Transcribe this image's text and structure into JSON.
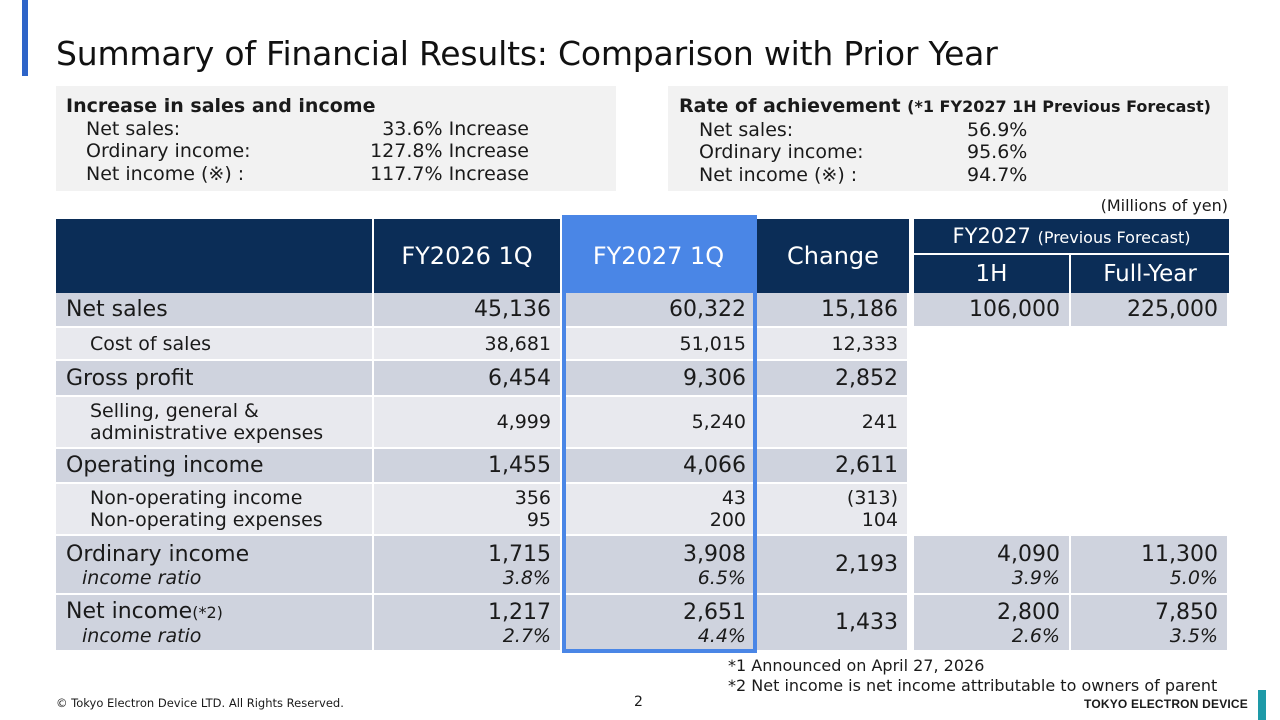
{
  "title": "Summary of Financial Results: Comparison with Prior Year",
  "increase_box": {
    "heading": "Increase in sales and income",
    "rows": [
      {
        "label": "Net sales:",
        "value": "33.6% Increase"
      },
      {
        "label": "Ordinary income:",
        "value": "127.8% Increase"
      },
      {
        "label": "Net income (※) :",
        "value": "117.7% Increase"
      }
    ]
  },
  "achievement_box": {
    "heading": "Rate of achievement",
    "heading_note": "(*1 FY2027 1H Previous Forecast)",
    "rows": [
      {
        "label": "Net sales:",
        "value": "56.9%"
      },
      {
        "label": "Ordinary income:",
        "value": "95.6%"
      },
      {
        "label": "Net income (※) :",
        "value": "94.7%"
      }
    ]
  },
  "unit": "(Millions of yen)",
  "table": {
    "headers": {
      "fy2026": "FY2026 1Q",
      "fy2027": "FY2027 1Q",
      "change": "Change",
      "forecast": "FY2027",
      "forecast_note": "(Previous Forecast)",
      "h1": "1H",
      "full_year": "Full-Year"
    },
    "net_sales": {
      "label": "Net sales",
      "fy2026": "45,136",
      "fy2027": "60,322",
      "change": "15,186",
      "h1": "106,000",
      "full_year": "225,000"
    },
    "cost_of_sales": {
      "label": "Cost of sales",
      "fy2026": "38,681",
      "fy2027": "51,015",
      "change": "12,333"
    },
    "gross_profit": {
      "label": "Gross profit",
      "fy2026": "6,454",
      "fy2027": "9,306",
      "change": "2,852"
    },
    "sga": {
      "label_1": "Selling, general &",
      "label_2": "administrative expenses",
      "fy2026": "4,999",
      "fy2027": "5,240",
      "change": "241"
    },
    "operating_income": {
      "label": "Operating income",
      "fy2026": "1,455",
      "fy2027": "4,066",
      "change": "2,611"
    },
    "non_operating": {
      "label_income": "Non-operating income",
      "label_expenses": "Non-operating expenses",
      "fy2026_income": "356",
      "fy2026_expenses": "95",
      "fy2027_income": "43",
      "fy2027_expenses": "200",
      "change_income": "(313)",
      "change_expenses": "104"
    },
    "ordinary_income": {
      "label": "Ordinary income",
      "ratio_label": "income ratio",
      "fy2026": "1,715",
      "fy2026_ratio": "3.8%",
      "fy2027": "3,908",
      "fy2027_ratio": "6.5%",
      "change": "2,193",
      "h1": "4,090",
      "h1_ratio": "3.9%",
      "full_year": "11,300",
      "full_year_ratio": "5.0%"
    },
    "net_income": {
      "label": "Net income",
      "label_note": "(*2)",
      "ratio_label": "income ratio",
      "fy2026": "1,217",
      "fy2026_ratio": "2.7%",
      "fy2027": "2,651",
      "fy2027_ratio": "4.4%",
      "change": "1,433",
      "h1": "2,800",
      "h1_ratio": "2.6%",
      "full_year": "7,850",
      "full_year_ratio": "3.5%"
    }
  },
  "notes": [
    "*1 Announced on April 27, 2026",
    "*2 Net income is net income attributable to owners of parent"
  ],
  "footer": {
    "copyright": "© Tokyo Electron Device LTD. All Rights Reserved.",
    "page": "2",
    "logo": "TOKYO ELECTRON DEVICE"
  },
  "colors": {
    "header_navy": "#0b2d57",
    "highlight_blue": "#4a86e6",
    "accent_blue": "#2e64c8",
    "row_dark": "#cfd3de",
    "row_light": "#e8e9ee",
    "logo_teal": "#1e9aa8"
  }
}
